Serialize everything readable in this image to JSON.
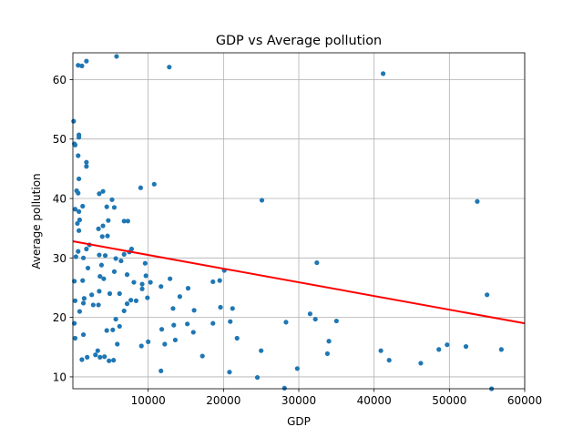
{
  "chart_data": {
    "type": "scatter",
    "title": "GDP vs Average pollution",
    "xlabel": "GDP",
    "ylabel": "Average pollution",
    "xlim": [
      0,
      60000
    ],
    "ylim": [
      8,
      64.5
    ],
    "xticks": [
      10000,
      20000,
      30000,
      40000,
      50000,
      60000
    ],
    "yticks": [
      10,
      20,
      30,
      40,
      50,
      60
    ],
    "grid": true,
    "colors": {
      "points": "#1f77b4",
      "trend": "#ff0000",
      "grid": "#b0b0b0"
    },
    "trend_line": {
      "x": [
        0,
        60000
      ],
      "y": [
        32.8,
        19.0
      ]
    },
    "series": [
      {
        "points": [
          [
            100,
            53.0
          ],
          [
            200,
            49.2
          ],
          [
            700,
            62.4
          ],
          [
            1200,
            62.3
          ],
          [
            1800,
            63.1
          ],
          [
            5800,
            63.9
          ],
          [
            12800,
            62.1
          ],
          [
            41200,
            61.0
          ],
          [
            800,
            50.7
          ],
          [
            800,
            50.3
          ],
          [
            300,
            49.0
          ],
          [
            700,
            47.2
          ],
          [
            1800,
            46.1
          ],
          [
            1800,
            45.4
          ],
          [
            800,
            43.3
          ],
          [
            500,
            41.3
          ],
          [
            700,
            40.9
          ],
          [
            4000,
            41.2
          ],
          [
            3500,
            40.8
          ],
          [
            5200,
            39.8
          ],
          [
            9000,
            41.8
          ],
          [
            10800,
            42.4
          ],
          [
            25100,
            39.7
          ],
          [
            53700,
            39.5
          ],
          [
            300,
            38.2
          ],
          [
            1300,
            38.7
          ],
          [
            800,
            37.8
          ],
          [
            4500,
            38.6
          ],
          [
            5500,
            38.5
          ],
          [
            900,
            36.4
          ],
          [
            600,
            35.8
          ],
          [
            4700,
            36.3
          ],
          [
            6800,
            36.2
          ],
          [
            7300,
            36.2
          ],
          [
            3400,
            34.9
          ],
          [
            4000,
            35.4
          ],
          [
            800,
            34.6
          ],
          [
            3900,
            33.6
          ],
          [
            4600,
            33.7
          ],
          [
            2200,
            32.2
          ],
          [
            1800,
            31.5
          ],
          [
            700,
            31.1
          ],
          [
            400,
            30.2
          ],
          [
            1400,
            30.0
          ],
          [
            3500,
            30.5
          ],
          [
            4300,
            30.4
          ],
          [
            7500,
            31.0
          ],
          [
            6800,
            30.6
          ],
          [
            7800,
            31.5
          ],
          [
            2000,
            28.3
          ],
          [
            3800,
            28.8
          ],
          [
            5700,
            29.9
          ],
          [
            6400,
            29.5
          ],
          [
            9600,
            29.1
          ],
          [
            32400,
            29.2
          ],
          [
            200,
            26.1
          ],
          [
            1300,
            26.2
          ],
          [
            3600,
            26.9
          ],
          [
            4100,
            26.5
          ],
          [
            5500,
            27.7
          ],
          [
            7200,
            27.2
          ],
          [
            9700,
            27.0
          ],
          [
            10300,
            25.9
          ],
          [
            8100,
            25.9
          ],
          [
            9200,
            25.6
          ],
          [
            12900,
            26.5
          ],
          [
            11700,
            25.2
          ],
          [
            15300,
            24.9
          ],
          [
            18600,
            26.0
          ],
          [
            19500,
            26.2
          ],
          [
            20100,
            27.9
          ],
          [
            300,
            22.8
          ],
          [
            1500,
            23.2
          ],
          [
            1400,
            22.4
          ],
          [
            2500,
            23.8
          ],
          [
            3500,
            24.4
          ],
          [
            4900,
            24.0
          ],
          [
            6200,
            24.0
          ],
          [
            7700,
            22.9
          ],
          [
            8400,
            22.8
          ],
          [
            9200,
            24.8
          ],
          [
            9900,
            23.3
          ],
          [
            14200,
            23.5
          ],
          [
            55000,
            23.8
          ],
          [
            900,
            21.0
          ],
          [
            2700,
            22.1
          ],
          [
            3400,
            22.1
          ],
          [
            5700,
            19.7
          ],
          [
            6800,
            21.1
          ],
          [
            7200,
            22.3
          ],
          [
            13300,
            21.5
          ],
          [
            16100,
            21.2
          ],
          [
            19600,
            21.7
          ],
          [
            21200,
            21.5
          ],
          [
            31500,
            20.6
          ],
          [
            32200,
            19.7
          ],
          [
            200,
            19.0
          ],
          [
            6200,
            18.5
          ],
          [
            11800,
            18.0
          ],
          [
            13400,
            18.7
          ],
          [
            15200,
            18.9
          ],
          [
            16000,
            17.5
          ],
          [
            18600,
            19.0
          ],
          [
            20900,
            19.3
          ],
          [
            28300,
            19.2
          ],
          [
            35000,
            19.4
          ],
          [
            300,
            16.5
          ],
          [
            1400,
            17.1
          ],
          [
            4500,
            17.8
          ],
          [
            5300,
            17.9
          ],
          [
            5900,
            15.5
          ],
          [
            9100,
            15.2
          ],
          [
            10000,
            15.9
          ],
          [
            12200,
            15.5
          ],
          [
            13600,
            16.2
          ],
          [
            17200,
            13.5
          ],
          [
            21800,
            16.5
          ],
          [
            29800,
            11.4
          ],
          [
            34000,
            16.0
          ],
          [
            33800,
            13.9
          ],
          [
            49700,
            15.4
          ],
          [
            52200,
            15.1
          ],
          [
            56900,
            14.6
          ],
          [
            3000,
            13.7
          ],
          [
            3300,
            14.4
          ],
          [
            3600,
            13.3
          ],
          [
            4200,
            13.4
          ],
          [
            1200,
            12.9
          ],
          [
            1900,
            13.3
          ],
          [
            4800,
            12.7
          ],
          [
            5400,
            12.8
          ],
          [
            40900,
            14.4
          ],
          [
            42000,
            12.8
          ],
          [
            46200,
            12.3
          ],
          [
            48600,
            14.6
          ],
          [
            25000,
            14.4
          ],
          [
            11700,
            11.0
          ],
          [
            20800,
            10.8
          ],
          [
            24500,
            9.9
          ],
          [
            28100,
            8.1
          ],
          [
            55600,
            8.0
          ]
        ]
      }
    ]
  }
}
